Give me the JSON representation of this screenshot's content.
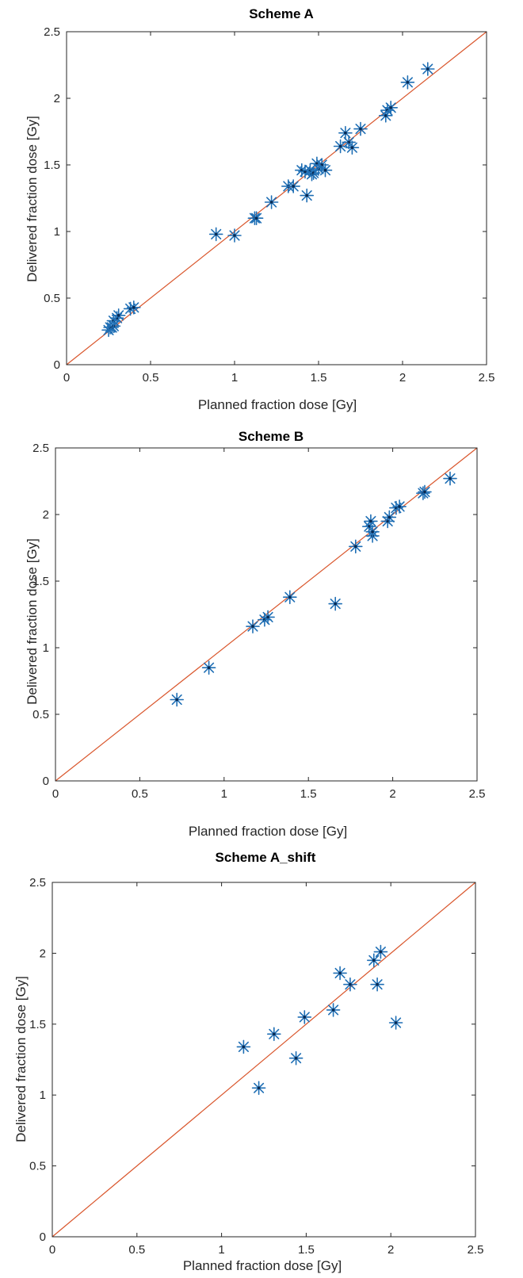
{
  "colors": {
    "marker": "#1f6fb5",
    "marker_dark": "#0a2a52",
    "identity_line": "#d9552b",
    "axis": "#262626",
    "background": "#ffffff"
  },
  "chart_data": [
    {
      "type": "scatter",
      "title": "Scheme A",
      "xlabel": "Planned fraction dose [Gy]",
      "ylabel": "Delivered fraction dose [Gy]",
      "xlim": [
        0,
        2.5
      ],
      "ylim": [
        0,
        2.5
      ],
      "xticks": [
        "0",
        "0.5",
        "1",
        "1.5",
        "2",
        "2.5"
      ],
      "yticks": [
        "0",
        "0.5",
        "1",
        "1.5",
        "2",
        "2.5"
      ],
      "marker": "asterisk",
      "grid": false,
      "reference_line": "y = x",
      "points": [
        [
          0.25,
          0.26
        ],
        [
          0.26,
          0.28
        ],
        [
          0.27,
          0.28
        ],
        [
          0.28,
          0.29
        ],
        [
          0.28,
          0.33
        ],
        [
          0.3,
          0.35
        ],
        [
          0.31,
          0.37
        ],
        [
          0.38,
          0.42
        ],
        [
          0.4,
          0.43
        ],
        [
          0.89,
          0.98
        ],
        [
          1.0,
          0.97
        ],
        [
          1.12,
          1.1
        ],
        [
          1.13,
          1.1
        ],
        [
          1.22,
          1.22
        ],
        [
          1.32,
          1.34
        ],
        [
          1.35,
          1.34
        ],
        [
          1.4,
          1.46
        ],
        [
          1.42,
          1.45
        ],
        [
          1.43,
          1.27
        ],
        [
          1.45,
          1.46
        ],
        [
          1.46,
          1.43
        ],
        [
          1.47,
          1.44
        ],
        [
          1.49,
          1.51
        ],
        [
          1.5,
          1.47
        ],
        [
          1.52,
          1.5
        ],
        [
          1.54,
          1.46
        ],
        [
          1.63,
          1.64
        ],
        [
          1.66,
          1.74
        ],
        [
          1.68,
          1.67
        ],
        [
          1.7,
          1.63
        ],
        [
          1.75,
          1.77
        ],
        [
          1.9,
          1.87
        ],
        [
          1.91,
          1.91
        ],
        [
          1.93,
          1.93
        ],
        [
          2.03,
          2.12
        ],
        [
          2.15,
          2.22
        ]
      ]
    },
    {
      "type": "scatter",
      "title": "Scheme B",
      "xlabel": "Planned fraction dose [Gy]",
      "ylabel": "Delivered fraction dose [Gy]",
      "xlim": [
        0,
        2.5
      ],
      "ylim": [
        0,
        2.5
      ],
      "xticks": [
        "0",
        "0.5",
        "1",
        "1.5",
        "2",
        "2.5"
      ],
      "yticks": [
        "0",
        "0.5",
        "1",
        "1.5",
        "2",
        "2.5"
      ],
      "marker": "asterisk",
      "grid": false,
      "reference_line": "y = x",
      "points": [
        [
          0.72,
          0.61
        ],
        [
          0.91,
          0.85
        ],
        [
          1.17,
          1.16
        ],
        [
          1.24,
          1.21
        ],
        [
          1.26,
          1.23
        ],
        [
          1.39,
          1.38
        ],
        [
          1.66,
          1.33
        ],
        [
          1.78,
          1.76
        ],
        [
          1.86,
          1.91
        ],
        [
          1.87,
          1.95
        ],
        [
          1.88,
          1.84
        ],
        [
          1.88,
          1.87
        ],
        [
          1.97,
          1.95
        ],
        [
          1.98,
          1.98
        ],
        [
          2.02,
          2.05
        ],
        [
          2.04,
          2.06
        ],
        [
          2.18,
          2.16
        ],
        [
          2.19,
          2.17
        ],
        [
          2.34,
          2.27
        ]
      ]
    },
    {
      "type": "scatter",
      "title": "Scheme A_shift",
      "xlabel": "Planned fraction dose [Gy]",
      "ylabel": "Delivered fraction dose [Gy]",
      "xlim": [
        0,
        2.5
      ],
      "ylim": [
        0,
        2.5
      ],
      "xticks": [
        "0",
        "0.5",
        "1",
        "1.5",
        "2",
        "2.5"
      ],
      "yticks": [
        "0",
        "0.5",
        "1",
        "1.5",
        "2",
        "2.5"
      ],
      "marker": "asterisk",
      "grid": false,
      "reference_line": "y = x",
      "points": [
        [
          1.13,
          1.34
        ],
        [
          1.22,
          1.05
        ],
        [
          1.31,
          1.43
        ],
        [
          1.44,
          1.26
        ],
        [
          1.49,
          1.55
        ],
        [
          1.66,
          1.6
        ],
        [
          1.7,
          1.86
        ],
        [
          1.76,
          1.78
        ],
        [
          1.9,
          1.95
        ],
        [
          1.92,
          1.78
        ],
        [
          1.94,
          2.01
        ],
        [
          2.03,
          1.51
        ]
      ]
    }
  ]
}
